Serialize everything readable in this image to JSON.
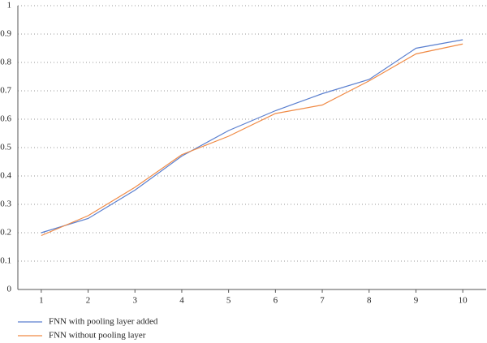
{
  "chart_data": {
    "type": "line",
    "x": [
      1,
      2,
      3,
      4,
      5,
      6,
      7,
      8,
      9,
      10
    ],
    "series": [
      {
        "name": "FNN with pooling layer added",
        "color": "#5a7fcf",
        "values": [
          0.2,
          0.25,
          0.35,
          0.47,
          0.56,
          0.63,
          0.69,
          0.74,
          0.85,
          0.88
        ]
      },
      {
        "name": "FNN without pooling layer",
        "color": "#f08a45",
        "values": [
          0.19,
          0.26,
          0.36,
          0.475,
          0.54,
          0.62,
          0.65,
          0.735,
          0.83,
          0.865
        ]
      }
    ],
    "xlim": [
      0.5,
      10.5
    ],
    "xticks": [
      1,
      2,
      3,
      4,
      5,
      6,
      7,
      8,
      9,
      10
    ],
    "ylim": [
      0,
      1
    ],
    "yticks": [
      0,
      0.1,
      0.2,
      0.3,
      0.4,
      0.5,
      0.6,
      0.7,
      0.8,
      0.9,
      1
    ],
    "grid": true,
    "legend": "bottom-left"
  }
}
